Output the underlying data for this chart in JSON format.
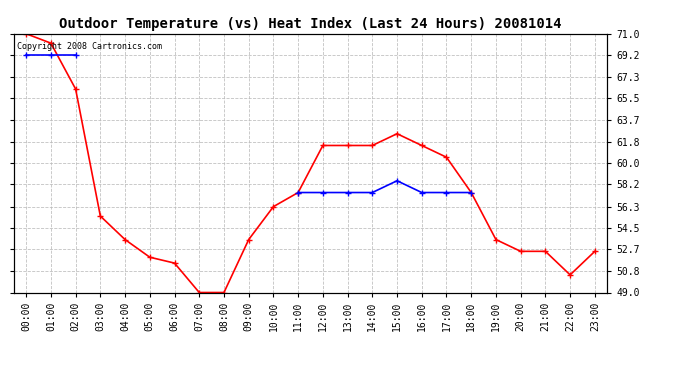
{
  "title": "Outdoor Temperature (vs) Heat Index (Last 24 Hours) 20081014",
  "copyright_text": "Copyright 2008 Cartronics.com",
  "x_labels": [
    "00:00",
    "01:00",
    "02:00",
    "03:00",
    "04:00",
    "05:00",
    "06:00",
    "07:00",
    "08:00",
    "09:00",
    "10:00",
    "11:00",
    "12:00",
    "13:00",
    "14:00",
    "15:00",
    "16:00",
    "17:00",
    "18:00",
    "19:00",
    "20:00",
    "21:00",
    "22:00",
    "23:00"
  ],
  "temp_data": [
    71.0,
    70.2,
    66.3,
    55.5,
    53.5,
    52.0,
    51.5,
    49.0,
    49.0,
    53.5,
    56.3,
    57.5,
    61.5,
    61.5,
    61.5,
    62.5,
    61.5,
    60.5,
    57.5,
    53.5,
    52.5,
    52.5,
    50.5,
    52.5
  ],
  "heat_index_data": [
    69.2,
    69.2,
    69.2,
    null,
    null,
    null,
    null,
    null,
    null,
    null,
    null,
    57.5,
    57.5,
    57.5,
    57.5,
    58.5,
    57.5,
    57.5,
    57.5,
    null,
    null,
    null,
    null,
    null
  ],
  "temp_color": "#FF0000",
  "heat_index_color": "#0000FF",
  "marker": "+",
  "marker_size": 5,
  "marker_linewidth": 1.0,
  "line_width": 1.2,
  "ylim": [
    49.0,
    71.0
  ],
  "ytick_labels": [
    "49.0",
    "50.8",
    "52.7",
    "54.5",
    "56.3",
    "58.2",
    "60.0",
    "61.8",
    "63.7",
    "65.5",
    "67.3",
    "69.2",
    "71.0"
  ],
  "ytick_values": [
    49.0,
    50.8,
    52.7,
    54.5,
    56.3,
    58.2,
    60.0,
    61.8,
    63.7,
    65.5,
    67.3,
    69.2,
    71.0
  ],
  "background_color": "#ffffff",
  "plot_bg_color": "#ffffff",
  "grid_color": "#bbbbbb",
  "title_fontsize": 10,
  "tick_fontsize": 7,
  "copyright_fontsize": 6,
  "figsize": [
    6.9,
    3.75
  ],
  "dpi": 100
}
